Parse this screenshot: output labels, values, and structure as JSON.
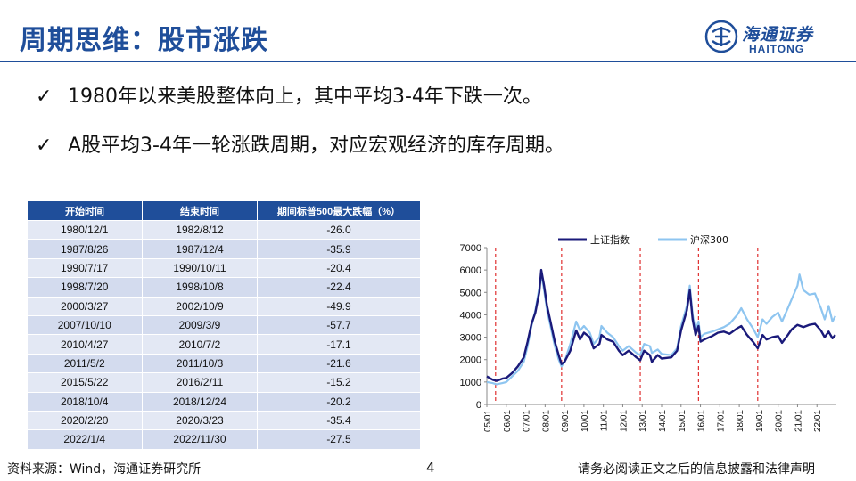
{
  "title": "周期思维：股市涨跌",
  "logo": {
    "cn": "海通证券",
    "en": "HAITONG"
  },
  "bullets": [
    "1980年以来美股整体向上，其中平均3-4年下跌一次。",
    "A股平均3-4年一轮涨跌周期，对应宏观经济的库存周期。"
  ],
  "table": {
    "headers": [
      "开始时间",
      "结束时间",
      "期间标普500最大跌幅（%）"
    ],
    "rows": [
      [
        "1980/12/1",
        "1982/8/12",
        "-26.0"
      ],
      [
        "1987/8/26",
        "1987/12/4",
        "-35.9"
      ],
      [
        "1990/7/17",
        "1990/10/11",
        "-20.4"
      ],
      [
        "1998/7/20",
        "1998/10/8",
        "-22.4"
      ],
      [
        "2000/3/27",
        "2002/10/9",
        "-49.9"
      ],
      [
        "2007/10/10",
        "2009/3/9",
        "-57.7"
      ],
      [
        "2010/4/27",
        "2010/7/2",
        "-17.1"
      ],
      [
        "2011/5/2",
        "2011/10/3",
        "-21.6"
      ],
      [
        "2015/5/22",
        "2016/2/11",
        "-15.2"
      ],
      [
        "2018/10/4",
        "2018/12/24",
        "-20.2"
      ],
      [
        "2020/2/20",
        "2020/3/23",
        "-35.4"
      ],
      [
        "2022/1/4",
        "2022/11/30",
        "-27.5"
      ]
    ]
  },
  "chart_data": {
    "type": "line",
    "x": [
      "05/01",
      "06/01",
      "07/01",
      "08/01",
      "09/01",
      "10/01",
      "11/01",
      "12/01",
      "13/01",
      "14/01",
      "15/01",
      "16/01",
      "17/01",
      "18/01",
      "19/01",
      "20/01",
      "21/01",
      "22/01"
    ],
    "ylim": [
      0,
      7000
    ],
    "yticks": [
      "0",
      "1000",
      "2000",
      "3000",
      "4000",
      "5000",
      "6000",
      "7000"
    ],
    "series": [
      {
        "name": "上证指数",
        "color": "#1a1a7a",
        "points": [
          [
            2005.0,
            1250
          ],
          [
            2005.3,
            1100
          ],
          [
            2005.5,
            1050
          ],
          [
            2005.8,
            1150
          ],
          [
            2006.0,
            1180
          ],
          [
            2006.3,
            1400
          ],
          [
            2006.6,
            1700
          ],
          [
            2006.9,
            2100
          ],
          [
            2007.1,
            2800
          ],
          [
            2007.3,
            3600
          ],
          [
            2007.5,
            4100
          ],
          [
            2007.7,
            5000
          ],
          [
            2007.8,
            6000
          ],
          [
            2007.95,
            5300
          ],
          [
            2008.1,
            4400
          ],
          [
            2008.3,
            3600
          ],
          [
            2008.5,
            2800
          ],
          [
            2008.7,
            2200
          ],
          [
            2008.85,
            1800
          ],
          [
            2009.0,
            1900
          ],
          [
            2009.3,
            2400
          ],
          [
            2009.6,
            3300
          ],
          [
            2009.8,
            2900
          ],
          [
            2010.0,
            3200
          ],
          [
            2010.3,
            3000
          ],
          [
            2010.5,
            2500
          ],
          [
            2010.8,
            2700
          ],
          [
            2010.9,
            3100
          ],
          [
            2011.2,
            2900
          ],
          [
            2011.5,
            2800
          ],
          [
            2011.8,
            2400
          ],
          [
            2012.0,
            2200
          ],
          [
            2012.3,
            2400
          ],
          [
            2012.7,
            2100
          ],
          [
            2012.9,
            1970
          ],
          [
            2013.1,
            2400
          ],
          [
            2013.4,
            2200
          ],
          [
            2013.5,
            1900
          ],
          [
            2013.8,
            2200
          ],
          [
            2014.0,
            2050
          ],
          [
            2014.5,
            2100
          ],
          [
            2014.8,
            2400
          ],
          [
            2015.0,
            3300
          ],
          [
            2015.3,
            4200
          ],
          [
            2015.45,
            5100
          ],
          [
            2015.6,
            3800
          ],
          [
            2015.75,
            3100
          ],
          [
            2015.9,
            3500
          ],
          [
            2016.0,
            2800
          ],
          [
            2016.2,
            2900
          ],
          [
            2016.6,
            3050
          ],
          [
            2016.9,
            3200
          ],
          [
            2017.2,
            3250
          ],
          [
            2017.5,
            3150
          ],
          [
            2017.9,
            3400
          ],
          [
            2018.1,
            3500
          ],
          [
            2018.4,
            3100
          ],
          [
            2018.7,
            2800
          ],
          [
            2018.95,
            2500
          ],
          [
            2019.2,
            3100
          ],
          [
            2019.4,
            2900
          ],
          [
            2019.7,
            3000
          ],
          [
            2020.0,
            3050
          ],
          [
            2020.2,
            2750
          ],
          [
            2020.5,
            3100
          ],
          [
            2020.7,
            3350
          ],
          [
            2021.0,
            3550
          ],
          [
            2021.3,
            3450
          ],
          [
            2021.6,
            3550
          ],
          [
            2021.9,
            3600
          ],
          [
            2022.2,
            3300
          ],
          [
            2022.4,
            3000
          ],
          [
            2022.6,
            3250
          ],
          [
            2022.8,
            2950
          ],
          [
            2022.95,
            3100
          ]
        ]
      },
      {
        "name": "沪深300",
        "color": "#8ec5f0",
        "points": [
          [
            2005.0,
            1000
          ],
          [
            2005.3,
            950
          ],
          [
            2005.5,
            900
          ],
          [
            2005.8,
            950
          ],
          [
            2006.0,
            1000
          ],
          [
            2006.3,
            1250
          ],
          [
            2006.6,
            1500
          ],
          [
            2006.9,
            1900
          ],
          [
            2007.1,
            2600
          ],
          [
            2007.3,
            3500
          ],
          [
            2007.5,
            4200
          ],
          [
            2007.7,
            5200
          ],
          [
            2007.8,
            5800
          ],
          [
            2007.95,
            5100
          ],
          [
            2008.1,
            4200
          ],
          [
            2008.3,
            3400
          ],
          [
            2008.5,
            2600
          ],
          [
            2008.7,
            2000
          ],
          [
            2008.85,
            1700
          ],
          [
            2009.0,
            1900
          ],
          [
            2009.3,
            2700
          ],
          [
            2009.6,
            3700
          ],
          [
            2009.8,
            3300
          ],
          [
            2010.0,
            3500
          ],
          [
            2010.3,
            3200
          ],
          [
            2010.5,
            2700
          ],
          [
            2010.8,
            3000
          ],
          [
            2010.9,
            3500
          ],
          [
            2011.2,
            3200
          ],
          [
            2011.5,
            3000
          ],
          [
            2011.8,
            2600
          ],
          [
            2012.0,
            2400
          ],
          [
            2012.3,
            2600
          ],
          [
            2012.7,
            2300
          ],
          [
            2012.9,
            2200
          ],
          [
            2013.1,
            2700
          ],
          [
            2013.4,
            2600
          ],
          [
            2013.5,
            2300
          ],
          [
            2013.8,
            2450
          ],
          [
            2014.0,
            2250
          ],
          [
            2014.5,
            2200
          ],
          [
            2014.8,
            2500
          ],
          [
            2015.0,
            3500
          ],
          [
            2015.3,
            4400
          ],
          [
            2015.45,
            5300
          ],
          [
            2015.6,
            4000
          ],
          [
            2015.75,
            3300
          ],
          [
            2015.9,
            3700
          ],
          [
            2016.0,
            3000
          ],
          [
            2016.2,
            3150
          ],
          [
            2016.6,
            3250
          ],
          [
            2016.9,
            3350
          ],
          [
            2017.2,
            3450
          ],
          [
            2017.5,
            3600
          ],
          [
            2017.9,
            4000
          ],
          [
            2018.1,
            4300
          ],
          [
            2018.4,
            3800
          ],
          [
            2018.7,
            3400
          ],
          [
            2018.95,
            3000
          ],
          [
            2019.2,
            3800
          ],
          [
            2019.4,
            3600
          ],
          [
            2019.7,
            3900
          ],
          [
            2020.0,
            4100
          ],
          [
            2020.2,
            3700
          ],
          [
            2020.5,
            4300
          ],
          [
            2020.7,
            4700
          ],
          [
            2021.0,
            5300
          ],
          [
            2021.1,
            5800
          ],
          [
            2021.3,
            5100
          ],
          [
            2021.6,
            4900
          ],
          [
            2021.9,
            4950
          ],
          [
            2022.2,
            4300
          ],
          [
            2022.4,
            3800
          ],
          [
            2022.6,
            4400
          ],
          [
            2022.8,
            3700
          ],
          [
            2022.95,
            3950
          ]
        ]
      }
    ],
    "event_lines_x": [
      2005.45,
      2008.85,
      2012.9,
      2015.9,
      2018.95
    ],
    "event_line_color": "#e03030",
    "legend": "top",
    "grid": false
  },
  "footer": {
    "source": "资料来源：Wind，海通证券研究所",
    "page": "4",
    "disclaimer": "请务必阅读正文之后的信息披露和法律声明"
  }
}
